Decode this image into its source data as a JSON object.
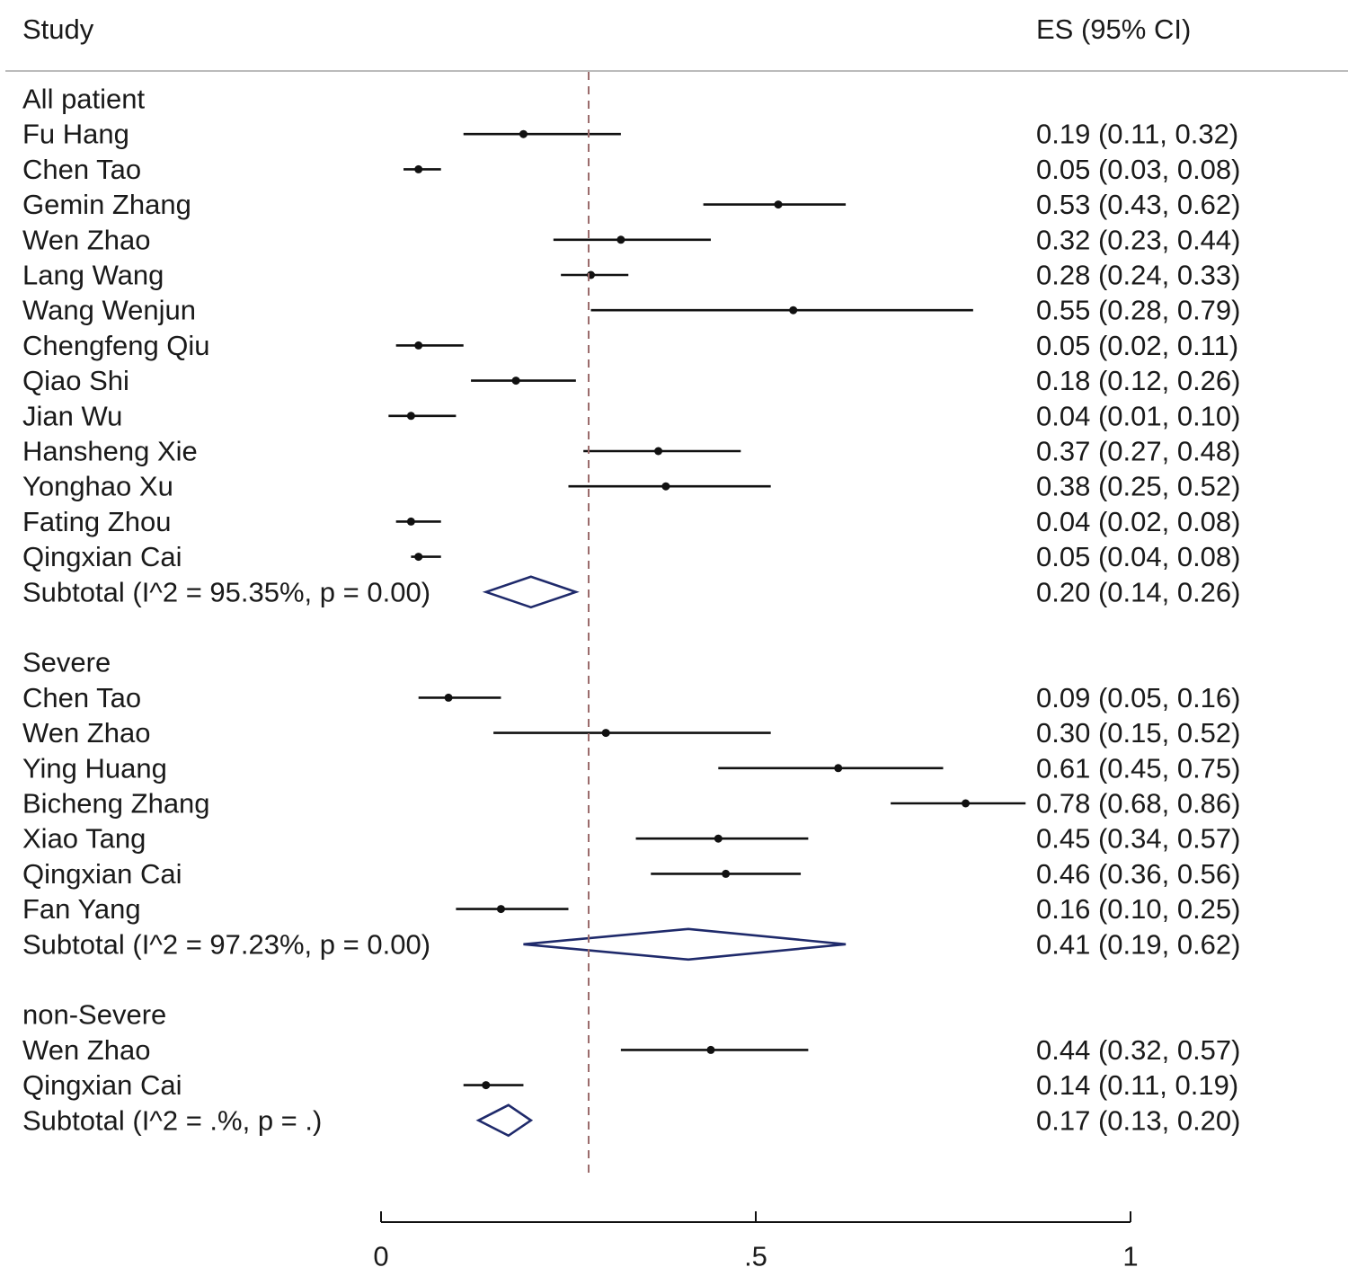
{
  "header": {
    "study_label": "Study",
    "es_label": "ES (95% CI)"
  },
  "chart_data": {
    "type": "forest",
    "xlim": [
      0,
      1
    ],
    "x_ticks": [
      0,
      0.5,
      1
    ],
    "x_tick_labels": [
      "0",
      ".5",
      "1"
    ],
    "reference_line": 0.277,
    "groups": [
      {
        "name": "All patient",
        "studies": [
          {
            "study": "Fu Hang",
            "es": 0.19,
            "lo": 0.11,
            "hi": 0.32,
            "label": "0.19 (0.11, 0.32)"
          },
          {
            "study": "Chen Tao",
            "es": 0.05,
            "lo": 0.03,
            "hi": 0.08,
            "label": "0.05 (0.03, 0.08)"
          },
          {
            "study": "Gemin Zhang",
            "es": 0.53,
            "lo": 0.43,
            "hi": 0.62,
            "label": "0.53 (0.43, 0.62)"
          },
          {
            "study": "Wen Zhao",
            "es": 0.32,
            "lo": 0.23,
            "hi": 0.44,
            "label": "0.32 (0.23, 0.44)"
          },
          {
            "study": "Lang Wang",
            "es": 0.28,
            "lo": 0.24,
            "hi": 0.33,
            "label": "0.28 (0.24, 0.33)"
          },
          {
            "study": "Wang Wenjun",
            "es": 0.55,
            "lo": 0.28,
            "hi": 0.79,
            "label": "0.55 (0.28, 0.79)"
          },
          {
            "study": "Chengfeng Qiu",
            "es": 0.05,
            "lo": 0.02,
            "hi": 0.11,
            "label": "0.05 (0.02, 0.11)"
          },
          {
            "study": "Qiao Shi",
            "es": 0.18,
            "lo": 0.12,
            "hi": 0.26,
            "label": "0.18 (0.12, 0.26)"
          },
          {
            "study": "Jian Wu",
            "es": 0.04,
            "lo": 0.01,
            "hi": 0.1,
            "label": "0.04 (0.01, 0.10)"
          },
          {
            "study": "Hansheng Xie",
            "es": 0.37,
            "lo": 0.27,
            "hi": 0.48,
            "label": "0.37 (0.27, 0.48)"
          },
          {
            "study": "Yonghao Xu",
            "es": 0.38,
            "lo": 0.25,
            "hi": 0.52,
            "label": "0.38 (0.25, 0.52)"
          },
          {
            "study": "Fating Zhou",
            "es": 0.04,
            "lo": 0.02,
            "hi": 0.08,
            "label": "0.04 (0.02, 0.08)"
          },
          {
            "study": "Qingxian Cai",
            "es": 0.05,
            "lo": 0.04,
            "hi": 0.08,
            "label": "0.05 (0.04, 0.08)"
          }
        ],
        "subtotal": {
          "text": "Subtotal  (I^2 = 95.35%, p = 0.00)",
          "es": 0.2,
          "lo": 0.14,
          "hi": 0.26,
          "label": "0.20 (0.14, 0.26)"
        }
      },
      {
        "name": "Severe",
        "studies": [
          {
            "study": "Chen Tao",
            "es": 0.09,
            "lo": 0.05,
            "hi": 0.16,
            "label": "0.09 (0.05, 0.16)"
          },
          {
            "study": "Wen Zhao",
            "es": 0.3,
            "lo": 0.15,
            "hi": 0.52,
            "label": "0.30 (0.15, 0.52)"
          },
          {
            "study": "Ying Huang",
            "es": 0.61,
            "lo": 0.45,
            "hi": 0.75,
            "label": "0.61 (0.45, 0.75)"
          },
          {
            "study": "Bicheng Zhang",
            "es": 0.78,
            "lo": 0.68,
            "hi": 0.86,
            "label": "0.78 (0.68, 0.86)"
          },
          {
            "study": "Xiao Tang",
            "es": 0.45,
            "lo": 0.34,
            "hi": 0.57,
            "label": "0.45 (0.34, 0.57)"
          },
          {
            "study": "Qingxian Cai",
            "es": 0.46,
            "lo": 0.36,
            "hi": 0.56,
            "label": "0.46 (0.36, 0.56)"
          },
          {
            "study": "Fan Yang",
            "es": 0.16,
            "lo": 0.1,
            "hi": 0.25,
            "label": "0.16 (0.10, 0.25)"
          }
        ],
        "subtotal": {
          "text": "Subtotal  (I^2 = 97.23%, p = 0.00)",
          "es": 0.41,
          "lo": 0.19,
          "hi": 0.62,
          "label": "0.41 (0.19, 0.62)"
        }
      },
      {
        "name": "non-Severe",
        "studies": [
          {
            "study": "Wen Zhao",
            "es": 0.44,
            "lo": 0.32,
            "hi": 0.57,
            "label": "0.44 (0.32, 0.57)"
          },
          {
            "study": "Qingxian Cai",
            "es": 0.14,
            "lo": 0.11,
            "hi": 0.19,
            "label": "0.14 (0.11, 0.19)"
          }
        ],
        "subtotal": {
          "text": "Subtotal  (I^2 = .%, p = .)",
          "es": 0.17,
          "lo": 0.13,
          "hi": 0.2,
          "label": "0.17 (0.13, 0.20)"
        }
      }
    ],
    "colors": {
      "marker": "#111111",
      "diamond": "#1f2a6b",
      "reference": "#9a6b6b",
      "separator": "#bbbbbb"
    }
  }
}
